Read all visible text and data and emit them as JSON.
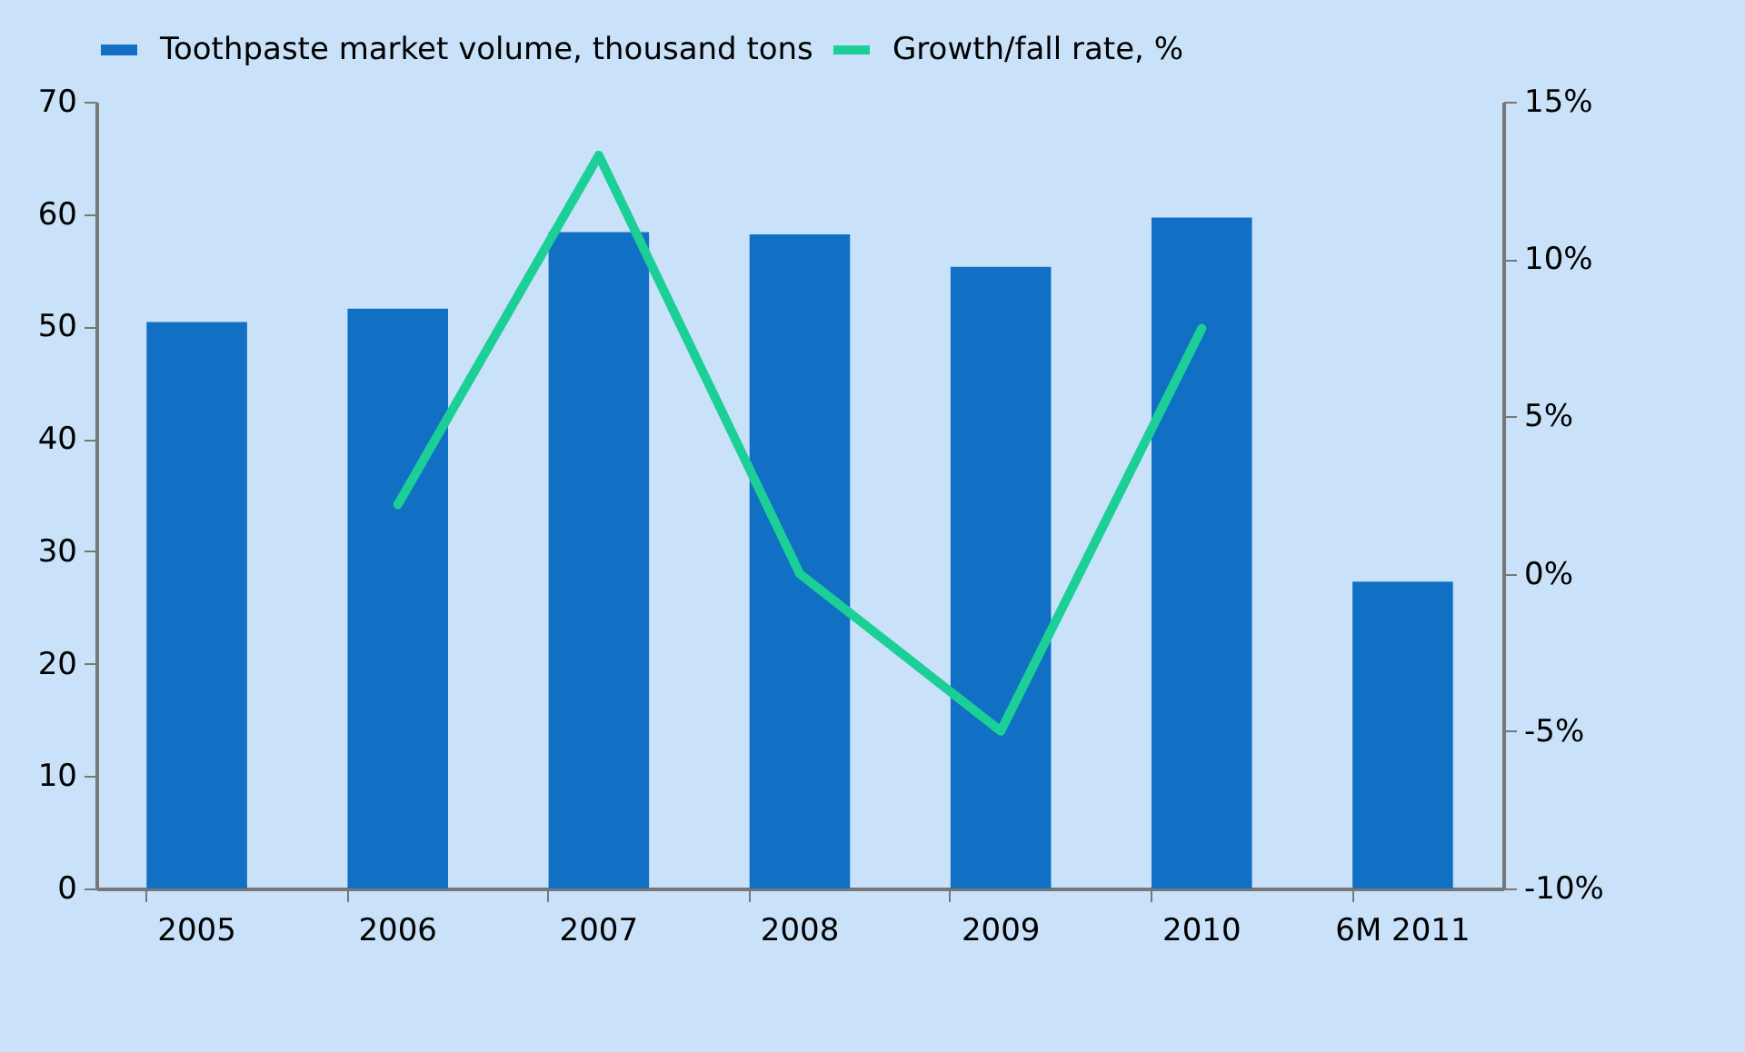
{
  "chart_data": {
    "type": "bar",
    "categories": [
      "2005",
      "2006",
      "2007",
      "2008",
      "2009",
      "2010",
      "6M 2011"
    ],
    "series": [
      {
        "name": "Toothpaste market volume, thousand tons",
        "color": "#116fc4",
        "values": [
          50.4,
          51.6,
          58.4,
          58.2,
          55.3,
          59.7,
          27.3
        ]
      },
      {
        "name": "Growth/fall rate, %",
        "type": "line",
        "axis": "y2",
        "color": "#1ccf96",
        "values": [
          null,
          2.2,
          13.3,
          0.0,
          -5.0,
          7.8,
          null
        ]
      }
    ],
    "ylim": [
      0,
      70
    ],
    "yticks": [
      0,
      10,
      20,
      30,
      40,
      50,
      60,
      70
    ],
    "y2lim": [
      -10,
      15
    ],
    "y2ticks": [
      {
        "value": -10,
        "label": "-10%"
      },
      {
        "value": -5,
        "label": "-5%"
      },
      {
        "value": 0,
        "label": "0%"
      },
      {
        "value": 5,
        "label": "5%"
      },
      {
        "value": 10,
        "label": "10%"
      },
      {
        "value": 15,
        "label": "15%"
      }
    ],
    "legend": "top"
  }
}
